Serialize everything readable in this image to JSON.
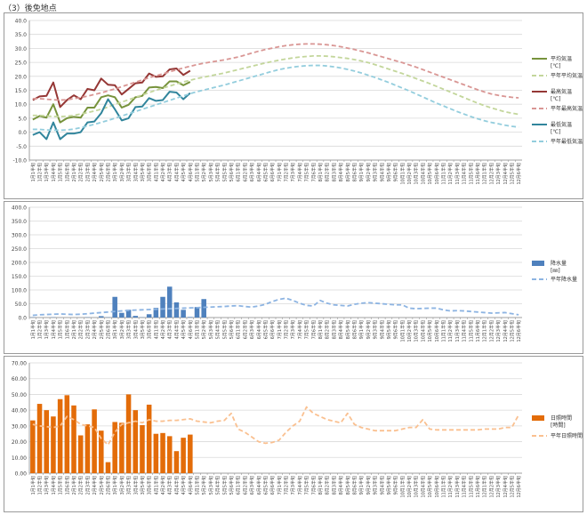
{
  "page_title": "（3）後免地点",
  "x_labels": [
    "1月1半旬",
    "1月2半旬",
    "1月3半旬",
    "1月4半旬",
    "1月5半旬",
    "1月6半旬",
    "2月1半旬",
    "2月2半旬",
    "2月3半旬",
    "2月4半旬",
    "2月5半旬",
    "2月6半旬",
    "3月1半旬",
    "3月2半旬",
    "3月3半旬",
    "3月4半旬",
    "3月5半旬",
    "3月6半旬",
    "4月1半旬",
    "4月2半旬",
    "4月3半旬",
    "4月4半旬",
    "4月5半旬",
    "4月6半旬",
    "5月1半旬",
    "5月2半旬",
    "5月3半旬",
    "5月4半旬",
    "5月5半旬",
    "5月6半旬",
    "6月1半旬",
    "6月2半旬",
    "6月3半旬",
    "6月4半旬",
    "6月5半旬",
    "6月6半旬",
    "7月1半旬",
    "7月2半旬",
    "7月3半旬",
    "7月4半旬",
    "7月5半旬",
    "7月6半旬",
    "8月1半旬",
    "8月2半旬",
    "8月3半旬",
    "8月4半旬",
    "8月5半旬",
    "8月6半旬",
    "9月1半旬",
    "9月2半旬",
    "9月3半旬",
    "9月4半旬",
    "9月5半旬",
    "9月6半旬",
    "10月1半旬",
    "10月2半旬",
    "10月3半旬",
    "10月4半旬",
    "10月5半旬",
    "10月6半旬",
    "11月1半旬",
    "11月2半旬",
    "11月3半旬",
    "11月4半旬",
    "11月5半旬",
    "11月6半旬",
    "12月1半旬",
    "12月2半旬",
    "12月3半旬",
    "12月4半旬",
    "12月5半旬",
    "12月6半旬"
  ],
  "chart_data": [
    {
      "type": "line",
      "ylim": [
        -10,
        40
      ],
      "yticks": [
        "-10.0",
        "-5.0",
        "0.0",
        "5.0",
        "10.0",
        "15.0",
        "20.0",
        "25.0",
        "30.0",
        "35.0",
        "40.0"
      ],
      "series": [
        {
          "name": "平均気温",
          "unit": "[℃]",
          "style": "solid",
          "color": "#77933c",
          "values": [
            4.5,
            5.8,
            5.2,
            10,
            3.5,
            5,
            5.5,
            5.2,
            8.8,
            8.8,
            12.5,
            13.2,
            12.5,
            8.8,
            9.8,
            12.5,
            13,
            16,
            16.2,
            15.8,
            18.2,
            18.2,
            16.8,
            18
          ]
        },
        {
          "name": "平年平均気温",
          "style": "dashed",
          "color": "#c3d69b",
          "values": [
            6,
            6,
            5.8,
            5.6,
            5.6,
            5.7,
            6,
            6.5,
            7,
            7.6,
            8.2,
            9,
            10,
            10.8,
            11.6,
            12.5,
            13.3,
            14.2,
            15,
            15.8,
            16.5,
            17.3,
            18,
            18.6,
            19.2,
            19.7,
            20.2,
            20.7,
            21.2,
            21.8,
            22.4,
            23,
            23.6,
            24.2,
            24.8,
            25.3,
            25.8,
            26.2,
            26.6,
            26.9,
            27.1,
            27.3,
            27.3,
            27.2,
            27,
            26.7,
            26.4,
            26,
            25.5,
            24.9,
            24.2,
            23.4,
            22.6,
            21.8,
            21,
            20.1,
            19.2,
            18.3,
            17.4,
            16.4,
            15.4,
            14.4,
            13.4,
            12.4,
            11.4,
            10.4,
            9.5,
            8.7,
            8,
            7.3,
            6.8,
            6.4
          ]
        },
        {
          "name": "最高気温",
          "unit": "[℃]",
          "style": "solid",
          "color": "#953735",
          "values": [
            11.5,
            12.8,
            13,
            17.8,
            9,
            11.5,
            13.2,
            11.8,
            15.5,
            15,
            19.2,
            17,
            16.8,
            13.5,
            15.5,
            17.5,
            17.8,
            21,
            19.8,
            20,
            22.5,
            22.8,
            20.5,
            22
          ]
        },
        {
          "name": "平年最高気温",
          "style": "dashed",
          "color": "#d99694",
          "values": [
            12,
            12,
            11.8,
            11.6,
            11.5,
            11.6,
            12,
            12.4,
            12.9,
            13.5,
            14.1,
            14.8,
            15.5,
            16.3,
            17.1,
            17.9,
            18.7,
            19.5,
            20.2,
            20.9,
            21.6,
            22.3,
            23,
            23.6,
            24.2,
            24.7,
            25.1,
            25.5,
            25.9,
            26.4,
            26.9,
            27.6,
            28.3,
            29,
            29.6,
            30.1,
            30.6,
            31,
            31.3,
            31.5,
            31.6,
            31.6,
            31.5,
            31.3,
            31,
            30.6,
            30.1,
            29.6,
            29,
            28.4,
            27.7,
            27,
            26.3,
            25.6,
            24.9,
            24.1,
            23.3,
            22.4,
            21.5,
            20.6,
            19.7,
            18.8,
            17.9,
            17,
            16.1,
            15.2,
            14.4,
            13.7,
            13.2,
            12.8,
            12.5,
            12.3
          ]
        },
        {
          "name": "最低気温",
          "unit": "[℃]",
          "style": "solid",
          "color": "#31859c",
          "values": [
            -1,
            0,
            -2.5,
            3.5,
            -2.5,
            -0.5,
            -0.5,
            0,
            3.5,
            3.8,
            6.8,
            11.8,
            8.2,
            4.2,
            5,
            9,
            9.2,
            12.2,
            11.2,
            11.5,
            14.5,
            14.2,
            11.8,
            14
          ]
        },
        {
          "name": "平年最低気温",
          "style": "dashed",
          "color": "#93cddd",
          "values": [
            1,
            1,
            0.8,
            0.7,
            0.7,
            0.8,
            1.1,
            1.6,
            2.2,
            2.8,
            3.5,
            4.2,
            5,
            5.8,
            6.6,
            7.4,
            8.2,
            9,
            9.8,
            10.6,
            11.4,
            12.2,
            13,
            13.8,
            14.5,
            15.1,
            15.7,
            16.3,
            16.9,
            17.6,
            18.3,
            19,
            19.7,
            20.4,
            21.1,
            21.8,
            22.4,
            22.9,
            23.3,
            23.6,
            23.8,
            23.9,
            23.9,
            23.7,
            23.4,
            23,
            22.5,
            21.9,
            21.2,
            20.4,
            19.6,
            18.7,
            17.8,
            16.8,
            15.8,
            14.8,
            13.7,
            12.6,
            11.5,
            10.4,
            9.4,
            8.4,
            7.4,
            6.5,
            5.6,
            4.8,
            4.1,
            3.5,
            3,
            2.5,
            2.1,
            1.8
          ]
        }
      ]
    },
    {
      "type": "bar",
      "ylim": [
        0,
        400
      ],
      "yticks": [
        "0.0",
        "50.0",
        "100.0",
        "150.0",
        "200.0",
        "250.0",
        "300.0",
        "350.0",
        "400.0"
      ],
      "series": [
        {
          "name": "降水量",
          "unit": "[㎜]",
          "kind": "bar",
          "color": "#4f81bd",
          "values": [
            1,
            0,
            0,
            1,
            0,
            0,
            0,
            0,
            1,
            0,
            5,
            1,
            75,
            17,
            28,
            6,
            1,
            12,
            35,
            75,
            112,
            55,
            28,
            2,
            38,
            67
          ]
        },
        {
          "name": "平年降水量",
          "kind": "line",
          "style": "dashed",
          "color": "#8db4e2",
          "values": [
            8,
            10,
            11,
            12,
            13,
            12,
            11,
            12,
            14,
            16,
            18,
            20,
            22,
            24,
            26,
            27,
            28,
            29,
            30,
            31,
            32,
            33,
            34,
            35,
            36,
            37,
            38,
            39,
            40,
            42,
            43,
            40,
            38,
            42,
            48,
            58,
            66,
            70,
            62,
            52,
            44,
            42,
            62,
            52,
            46,
            44,
            42,
            48,
            52,
            54,
            52,
            50,
            48,
            46,
            46,
            34,
            32,
            33,
            34,
            34,
            28,
            24,
            25,
            24,
            22,
            20,
            18,
            16,
            17,
            18,
            14,
            10
          ]
        }
      ]
    },
    {
      "type": "bar",
      "ylim": [
        0,
        70
      ],
      "yticks": [
        "0.00",
        "10.00",
        "20.00",
        "30.00",
        "40.00",
        "50.00",
        "60.00",
        "70.00"
      ],
      "series": [
        {
          "name": "日照時間",
          "unit": "[時間]",
          "kind": "bar",
          "color": "#e36c09",
          "values": [
            33.5,
            44,
            40,
            36,
            47,
            49.5,
            43,
            24,
            31,
            40.5,
            27,
            7,
            32.5,
            32,
            50,
            40,
            30.5,
            43.5,
            25,
            25.5,
            23.5,
            14,
            22.5,
            24.5
          ]
        },
        {
          "name": "平年日照時間",
          "kind": "line",
          "style": "dashed",
          "color": "#fac090",
          "values": [
            31,
            30,
            29.5,
            29,
            30,
            36,
            34,
            31,
            30,
            29,
            22,
            18,
            26,
            31,
            32,
            33,
            32,
            34,
            33,
            33,
            33.5,
            33.5,
            34,
            34.5,
            33,
            32.5,
            32,
            33,
            33.5,
            38,
            28,
            26,
            23,
            20,
            19,
            19.5,
            21,
            26,
            30,
            33,
            42,
            38,
            36,
            34,
            33,
            32,
            38,
            31,
            29,
            28,
            27,
            27,
            27,
            27,
            28,
            29,
            29,
            34,
            28,
            27.5,
            27.5,
            27.5,
            27.5,
            27.5,
            27.5,
            27.5,
            28,
            28,
            28,
            29,
            29,
            37
          ]
        }
      ]
    }
  ]
}
